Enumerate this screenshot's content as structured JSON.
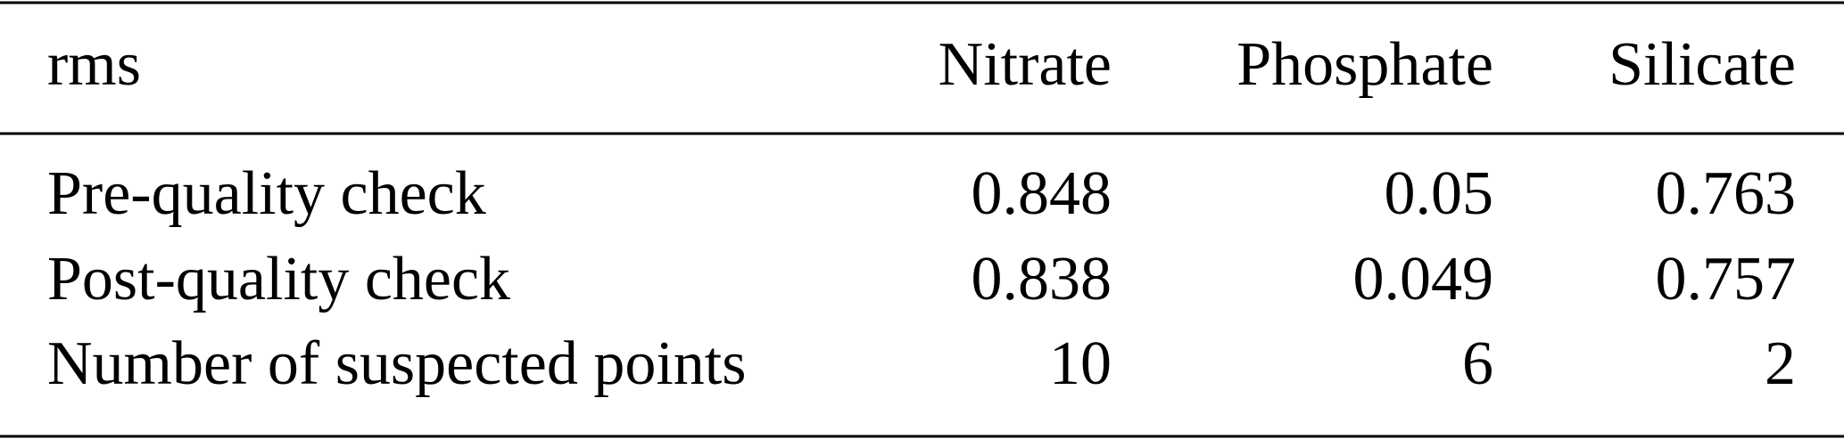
{
  "table": {
    "header": [
      "rms",
      "Nitrate",
      "Phosphate",
      "Silicate"
    ],
    "rows": [
      [
        "Pre-quality check",
        0.848,
        0.05,
        0.763
      ],
      [
        "Post-quality check",
        0.838,
        0.049,
        0.757
      ],
      [
        "Number of suspected points",
        10,
        6,
        2
      ]
    ]
  }
}
